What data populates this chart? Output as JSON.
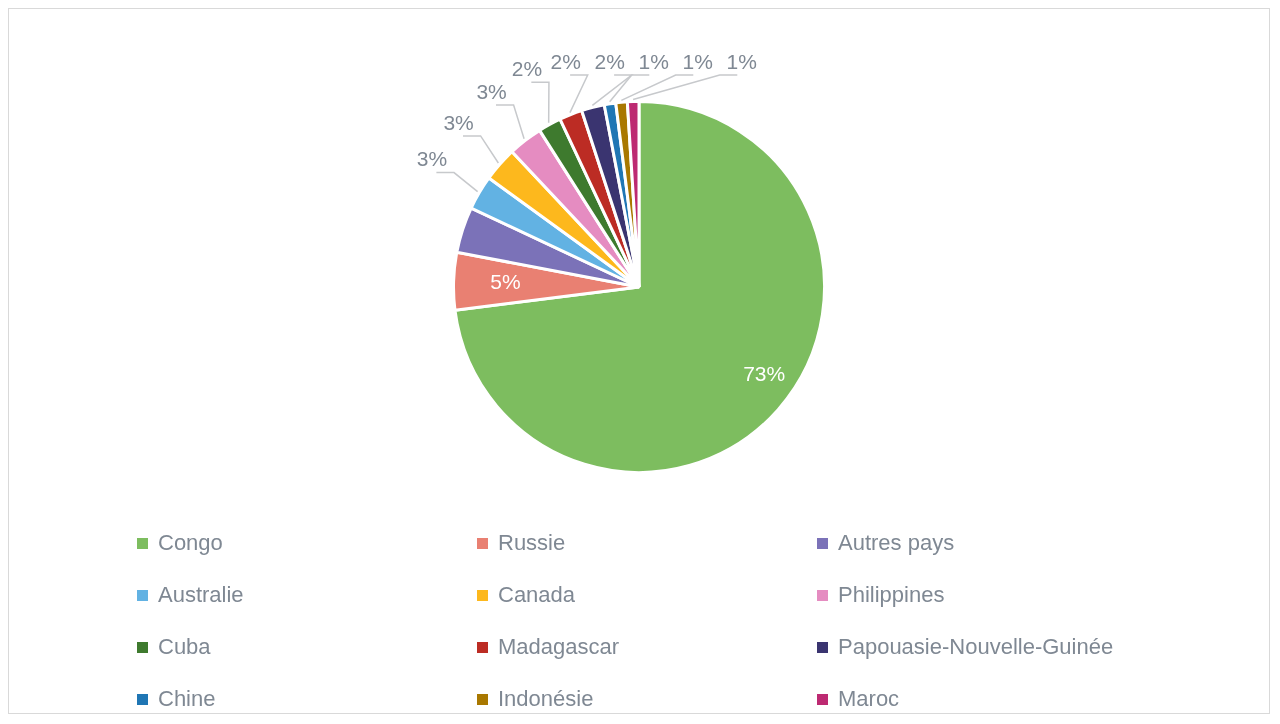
{
  "chart_data": {
    "type": "pie",
    "categories": [
      "Congo",
      "Russie",
      "Autres pays",
      "Australie",
      "Canada",
      "Philippines",
      "Cuba",
      "Madagascar",
      "Papouasie-Nouvelle-Guinée",
      "Chine",
      "Indonésie",
      "Maroc"
    ],
    "values": [
      73,
      5,
      4,
      3,
      3,
      3,
      2,
      2,
      2,
      1,
      1,
      1
    ],
    "value_labels": [
      "73%",
      "5%",
      null,
      "3%",
      "3%",
      "3%",
      "2%",
      "2%",
      "2%",
      "1%",
      "1%",
      "1%"
    ],
    "colors": [
      "#7dbd5f",
      "#e98072",
      "#7b72b8",
      "#62b2e3",
      "#fdb81d",
      "#e58cc1",
      "#3e7a2e",
      "#bc2c24",
      "#3a3470",
      "#1f76b4",
      "#a97800",
      "#bd2a72"
    ],
    "legend": "bottom"
  }
}
